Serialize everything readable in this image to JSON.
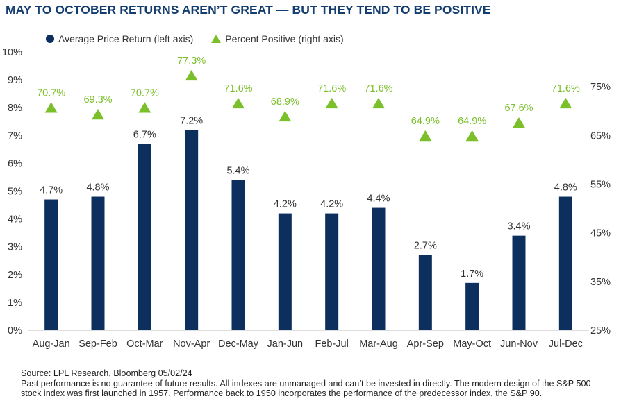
{
  "title": "MAY TO OCTOBER RETURNS AREN’T GREAT — BUT THEY TEND TO BE POSITIVE",
  "legend": {
    "series1": "Average Price Return (left axis)",
    "series2": "Percent Positive (right axis)"
  },
  "footer": {
    "source": "Source: LPL Research, Bloomberg 05/02/24",
    "disclaimer": "Past performance is no guarantee of future results. All indexes are unmanaged and can’t be invested in directly. The modern design of the S&P 500 stock index was first launched in 1957. Performance back to 1950 incorporates the performance of the predecessor index, the S&P 90."
  },
  "colors": {
    "bar": "#0d2f5e",
    "marker": "#7bbf2a",
    "title": "#123d6e"
  },
  "chart_data": {
    "type": "bar",
    "categories": [
      "Aug-Jan",
      "Sep-Feb",
      "Oct-Mar",
      "Nov-Apr",
      "Dec-May",
      "Jan-Jun",
      "Feb-Jul",
      "Mar-Aug",
      "Apr-Sep",
      "May-Oct",
      "Jun-Nov",
      "Jul-Dec"
    ],
    "series": [
      {
        "name": "Average Price Return (left axis)",
        "axis": "left",
        "kind": "bar",
        "values": [
          4.7,
          4.8,
          6.7,
          7.2,
          5.4,
          4.2,
          4.2,
          4.4,
          2.7,
          1.7,
          3.4,
          4.8
        ],
        "labels": [
          "4.7%",
          "4.8%",
          "6.7%",
          "7.2%",
          "5.4%",
          "4.2%",
          "4.2%",
          "4.4%",
          "2.7%",
          "1.7%",
          "3.4%",
          "4.8%"
        ]
      },
      {
        "name": "Percent Positive (right axis)",
        "axis": "right",
        "kind": "triangle-marker",
        "values": [
          70.7,
          69.3,
          70.7,
          77.3,
          71.6,
          68.9,
          71.6,
          71.6,
          64.9,
          64.9,
          67.6,
          71.6
        ],
        "labels": [
          "70.7%",
          "69.3%",
          "70.7%",
          "77.3%",
          "71.6%",
          "68.9%",
          "71.6%",
          "71.6%",
          "64.9%",
          "64.9%",
          "67.6%",
          "71.6%"
        ]
      }
    ],
    "left_axis": {
      "ylim": [
        0,
        10
      ],
      "ticks": [
        0,
        1,
        2,
        3,
        4,
        5,
        6,
        7,
        8,
        9,
        10
      ],
      "tick_labels": [
        "0%",
        "1%",
        "2%",
        "3%",
        "4%",
        "5%",
        "6%",
        "7%",
        "8%",
        "9%",
        "10%"
      ]
    },
    "right_axis": {
      "ylim": [
        25,
        82.14
      ],
      "ticks": [
        25,
        35,
        45,
        55,
        65,
        75
      ],
      "tick_labels": [
        "25%",
        "35%",
        "45%",
        "55%",
        "65%",
        "75%"
      ]
    },
    "grid": false,
    "legend_position": "top-left"
  }
}
